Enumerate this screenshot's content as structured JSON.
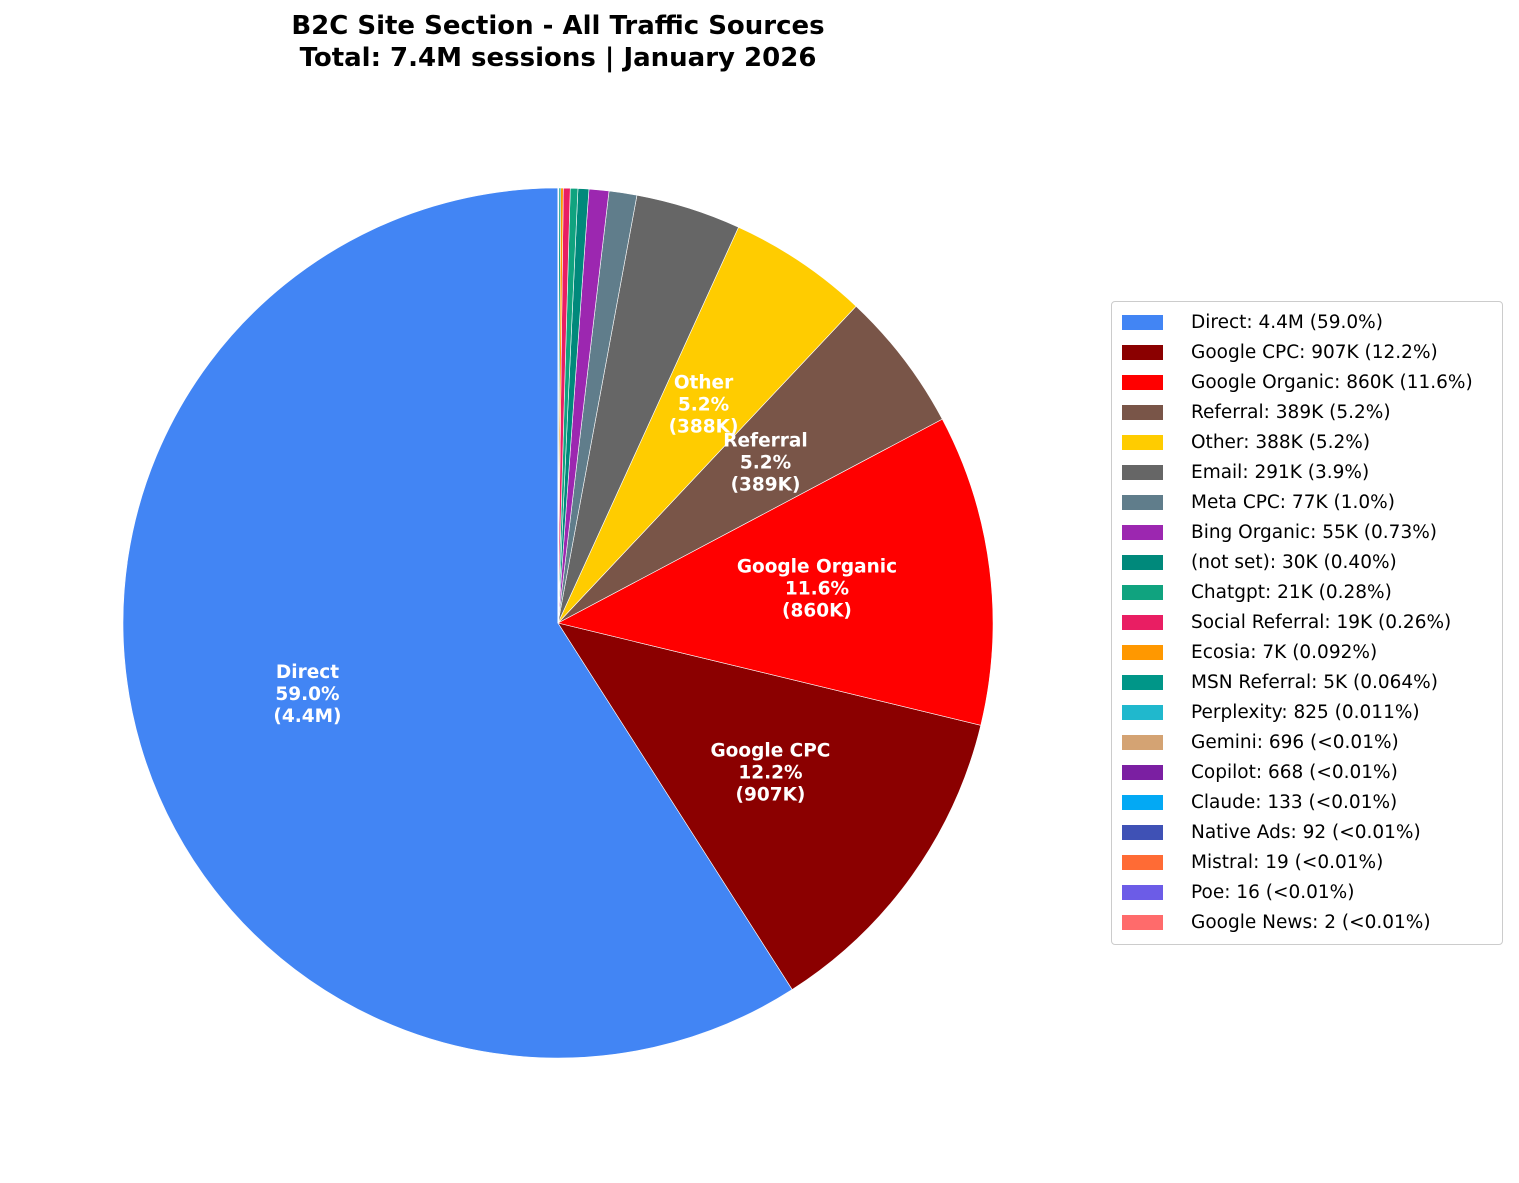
{
  "chart_data": {
    "type": "pie",
    "title": "B2C Site Section - All Traffic Sources",
    "subtitle": "Total: 7.4M sessions | January 2026",
    "start_angle_deg": 90,
    "direction": "counterclockwise",
    "legend_position": "right",
    "slices": [
      {
        "name": "Direct",
        "sessions": 4400000,
        "percent": 59.0,
        "legend": "Direct: 4.4M (59.0%)",
        "color": "#4285F4",
        "label": [
          "Direct",
          "59.0%",
          "(4.4M)"
        ]
      },
      {
        "name": "Google CPC",
        "sessions": 907000,
        "percent": 12.2,
        "legend": "Google CPC: 907K (12.2%)",
        "color": "#8B0000",
        "label": [
          "Google CPC",
          "12.2%",
          "(907K)"
        ]
      },
      {
        "name": "Google Organic",
        "sessions": 860000,
        "percent": 11.6,
        "legend": "Google Organic: 860K (11.6%)",
        "color": "#FF0000",
        "label": [
          "Google Organic",
          "11.6%",
          "(860K)"
        ]
      },
      {
        "name": "Referral",
        "sessions": 389000,
        "percent": 5.2,
        "legend": "Referral: 389K (5.2%)",
        "color": "#795548",
        "label": [
          "Referral",
          "5.2%",
          "(389K)"
        ]
      },
      {
        "name": "Other",
        "sessions": 388000,
        "percent": 5.2,
        "legend": "Other: 388K (5.2%)",
        "color": "#FFCC00",
        "label": [
          "Other",
          "5.2%",
          "(388K)"
        ]
      },
      {
        "name": "Email",
        "sessions": 291000,
        "percent": 3.9,
        "legend": "Email: 291K (3.9%)",
        "color": "#666666"
      },
      {
        "name": "Meta CPC",
        "sessions": 77000,
        "percent": 1.0,
        "legend": "Meta CPC: 77K (1.0%)",
        "color": "#607D8B"
      },
      {
        "name": "Bing Organic",
        "sessions": 55000,
        "percent": 0.73,
        "legend": "Bing Organic: 55K (0.73%)",
        "color": "#9C27B0"
      },
      {
        "name": "(not set)",
        "sessions": 30000,
        "percent": 0.4,
        "legend": "(not set): 30K (0.40%)",
        "color": "#00897B"
      },
      {
        "name": "Chatgpt",
        "sessions": 21000,
        "percent": 0.28,
        "legend": "Chatgpt: 21K (0.28%)",
        "color": "#10A37F"
      },
      {
        "name": "Social Referral",
        "sessions": 19000,
        "percent": 0.26,
        "legend": "Social Referral: 19K (0.26%)",
        "color": "#E91E63"
      },
      {
        "name": "Ecosia",
        "sessions": 7000,
        "percent": 0.092,
        "legend": "Ecosia: 7K (0.092%)",
        "color": "#FF9800"
      },
      {
        "name": "MSN Referral",
        "sessions": 5000,
        "percent": 0.064,
        "legend": "MSN Referral: 5K (0.064%)",
        "color": "#009688"
      },
      {
        "name": "Perplexity",
        "sessions": 825,
        "percent": 0.011,
        "legend": "Perplexity: 825 (0.011%)",
        "color": "#20B8CD"
      },
      {
        "name": "Gemini",
        "sessions": 696,
        "percent": 0.0094,
        "legend": "Gemini: 696 (<0.01%)",
        "color": "#D4A373"
      },
      {
        "name": "Copilot",
        "sessions": 668,
        "percent": 0.009,
        "legend": "Copilot: 668 (<0.01%)",
        "color": "#7B1FA2"
      },
      {
        "name": "Claude",
        "sessions": 133,
        "percent": 0.0018,
        "legend": "Claude: 133 (<0.01%)",
        "color": "#03A9F4"
      },
      {
        "name": "Native Ads",
        "sessions": 92,
        "percent": 0.0012,
        "legend": "Native Ads: 92 (<0.01%)",
        "color": "#3F51B5"
      },
      {
        "name": "Mistral",
        "sessions": 19,
        "percent": 0.0003,
        "legend": "Mistral: 19 (<0.01%)",
        "color": "#FF6B35"
      },
      {
        "name": "Poe",
        "sessions": 16,
        "percent": 0.0002,
        "legend": "Poe: 16 (<0.01%)",
        "color": "#6C5CE7"
      },
      {
        "name": "Google News",
        "sessions": 2,
        "percent": 3e-05,
        "legend": "Google News: 2 (<0.01%)",
        "color": "#FF6B6B"
      }
    ]
  }
}
